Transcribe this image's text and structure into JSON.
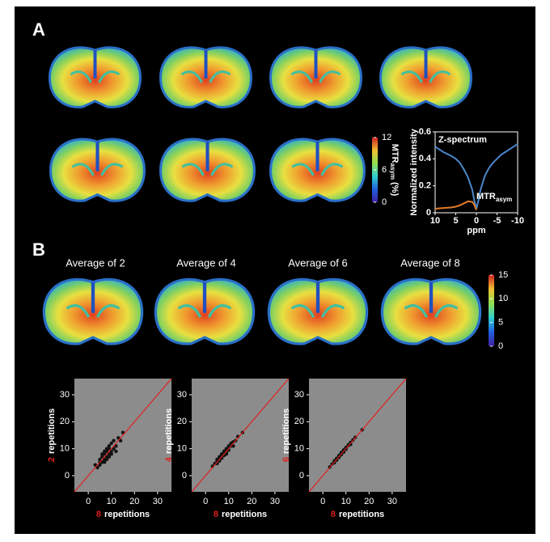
{
  "panel_labels": [
    "A",
    "B"
  ],
  "colorbar_a": {
    "title": "MTR",
    "title_subscript": "asym",
    "title_unit": " (%)",
    "lim": [
      0,
      12
    ],
    "ticks": [
      0,
      6,
      12
    ]
  },
  "averages": [
    "Average of 2",
    "Average of 4",
    "Average of 6",
    "Average of 8"
  ],
  "colorbar_b": {
    "lim": [
      0,
      15
    ],
    "ticks": [
      0,
      5,
      10,
      15
    ]
  },
  "chart_data": [
    {
      "type": "line",
      "y_label": "Normalized intensity",
      "x_label": "ppm",
      "x": [
        10,
        8,
        6,
        5,
        4,
        3,
        2,
        1,
        0.5,
        0,
        -0.5,
        -1,
        -2,
        -3,
        -4,
        -5,
        -6,
        -8,
        -10
      ],
      "xlim": [
        10,
        -10
      ],
      "xticks": [
        10,
        5,
        0,
        -5,
        -10
      ],
      "ylim": [
        0,
        0.6
      ],
      "yticks": [
        0,
        0.2,
        0.4,
        0.6
      ],
      "series": [
        {
          "name": "Z-spectrum",
          "color": "#4a86c8",
          "values": [
            0.49,
            0.45,
            0.42,
            0.4,
            0.37,
            0.32,
            0.26,
            0.17,
            0.09,
            0.03,
            0.09,
            0.17,
            0.27,
            0.33,
            0.37,
            0.4,
            0.43,
            0.47,
            0.51
          ]
        },
        {
          "name": "MTR",
          "subscript": "asym",
          "color": "#e07b28",
          "values": [
            0.03,
            0.035,
            0.04,
            0.045,
            0.055,
            0.07,
            0.085,
            0.08,
            0.06,
            0.02,
            null,
            null,
            null,
            null,
            null,
            null,
            null,
            null,
            null
          ]
        }
      ]
    },
    {
      "type": "scatter",
      "x_label_number": "8",
      "x_label_text": "repetitions",
      "y_label_number": "2",
      "y_label_text": "repetitions",
      "xlim": [
        -6,
        36
      ],
      "ylim": [
        -6,
        36
      ],
      "xticks": [
        0,
        10,
        20,
        30
      ],
      "yticks": [
        0,
        10,
        20,
        30
      ],
      "x": [
        3,
        4,
        5,
        5,
        6,
        6,
        7,
        7,
        7,
        8,
        8,
        8,
        9,
        9,
        9,
        10,
        10,
        11,
        11,
        12,
        13,
        14,
        6,
        7,
        8,
        9,
        10,
        5,
        12,
        15
      ],
      "values": [
        4,
        3,
        6,
        4,
        5,
        7,
        6,
        9,
        8,
        7,
        10,
        6,
        8,
        11,
        7,
        9,
        12,
        10,
        13,
        11,
        14,
        13,
        8,
        5,
        9,
        10,
        8,
        5,
        9,
        16
      ]
    },
    {
      "type": "scatter",
      "x_label_number": "8",
      "x_label_text": "repetitions",
      "y_label_number": "4",
      "y_label_text": "repetitions",
      "xlim": [
        -6,
        36
      ],
      "ylim": [
        -6,
        36
      ],
      "xticks": [
        0,
        10,
        20,
        30
      ],
      "yticks": [
        0,
        10,
        20,
        30
      ],
      "x": [
        3,
        4,
        5,
        5,
        6,
        6,
        7,
        7,
        7,
        8,
        8,
        8,
        9,
        9,
        9,
        10,
        10,
        11,
        11,
        12,
        13,
        14,
        6,
        7,
        8,
        9,
        10,
        5,
        12,
        16
      ],
      "values": [
        3.5,
        4.5,
        5.5,
        4.5,
        6.5,
        5.5,
        7.5,
        6.5,
        8,
        8.5,
        7.5,
        9,
        8.5,
        10,
        9.5,
        10.5,
        9.5,
        11,
        12,
        12.5,
        13,
        14.5,
        7,
        8,
        9,
        8,
        11,
        6,
        11,
        16
      ]
    },
    {
      "type": "scatter",
      "x_label_number": "8",
      "x_label_text": "repetitions",
      "y_label_number": "6",
      "y_label_text": "repetitions",
      "xlim": [
        -6,
        36
      ],
      "ylim": [
        -6,
        36
      ],
      "xticks": [
        0,
        10,
        20,
        30
      ],
      "yticks": [
        0,
        10,
        20,
        30
      ],
      "x": [
        3,
        4,
        5,
        5,
        6,
        6,
        7,
        7,
        7,
        8,
        8,
        8,
        9,
        9,
        9,
        10,
        10,
        11,
        11,
        12,
        13,
        14,
        6,
        7,
        8,
        9,
        10,
        5,
        12,
        17
      ],
      "values": [
        3.2,
        4.3,
        5.2,
        4.8,
        6.3,
        5.8,
        7.2,
        6.8,
        7.5,
        8.3,
        7.8,
        8.6,
        8.8,
        9.5,
        9.2,
        10.3,
        9.8,
        11.2,
        11.4,
        12.3,
        13.2,
        14.2,
        6.4,
        7.3,
        8.2,
        8.7,
        10.4,
        5.5,
        11.6,
        17
      ]
    }
  ]
}
